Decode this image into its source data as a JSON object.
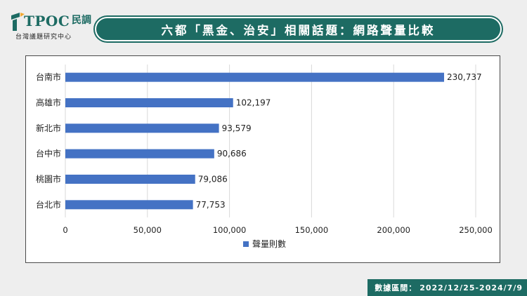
{
  "header": {
    "logo_text": "TPOC",
    "logo_glyph": "民調",
    "logo_subtitle": "台灣議題研究中心",
    "title": "六都「黑金、治安」相關話題：網路聲量比較"
  },
  "footer": {
    "label": "數據區間：",
    "range": "2022/12/25-2024/7/9"
  },
  "colors": {
    "brand": "#1d6b63",
    "bar": "#4472c4",
    "grid": "#d9d9d9"
  },
  "chart_data": {
    "type": "bar",
    "orientation": "horizontal",
    "categories": [
      "台南市",
      "高雄市",
      "新北市",
      "台中市",
      "桃園市",
      "台北市"
    ],
    "series": [
      {
        "name": "聲量則數",
        "values": [
          230737,
          102197,
          93579,
          90686,
          79086,
          77753
        ]
      }
    ],
    "value_labels": [
      "230,737",
      "102,197",
      "93,579",
      "90,686",
      "79,086",
      "77,753"
    ],
    "xlim": [
      0,
      250000
    ],
    "xticks": [
      0,
      50000,
      100000,
      150000,
      200000,
      250000
    ],
    "xtick_labels": [
      "0",
      "50,000",
      "100,000",
      "150,000",
      "200,000",
      "250,000"
    ],
    "grid": "vertical",
    "legend_position": "bottom"
  }
}
